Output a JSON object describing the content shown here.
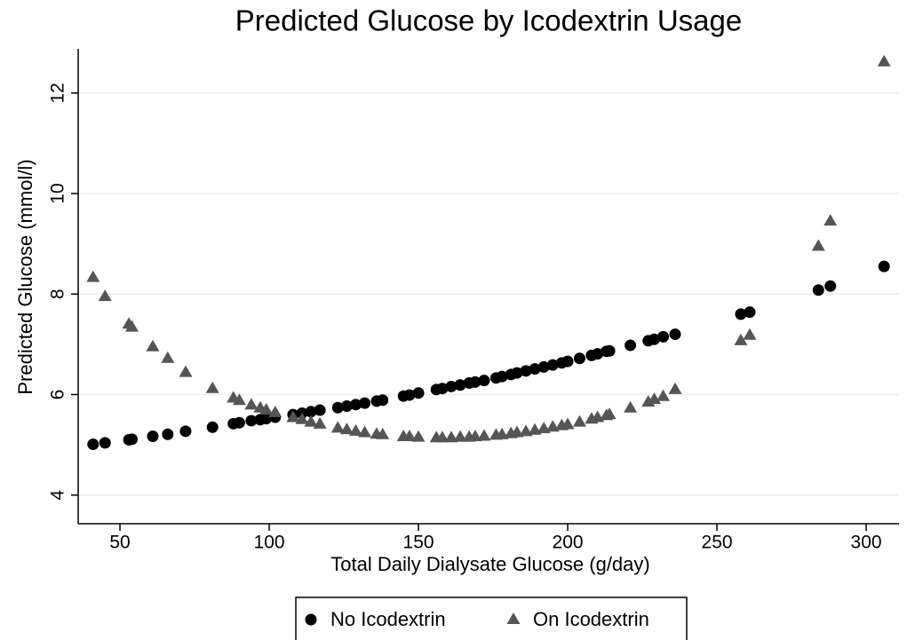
{
  "chart_data": {
    "type": "scatter",
    "title": "Predicted Glucose by Icodextrin Usage",
    "xlabel": "Total Daily Dialysate Glucose (g/day)",
    "ylabel": "Predicted Glucose (mmol/l)",
    "x": [
      41,
      45,
      53,
      54,
      61,
      66,
      72,
      81,
      88,
      90,
      94,
      97,
      99,
      102,
      108,
      111,
      114,
      117,
      123,
      126,
      129,
      132,
      136,
      138,
      145,
      147,
      150,
      156,
      158,
      161,
      164,
      167,
      169,
      172,
      176,
      178,
      181,
      183,
      186,
      189,
      192,
      195,
      198,
      200,
      204,
      208,
      210,
      213,
      214,
      221,
      227,
      229,
      232,
      236,
      258,
      261,
      284,
      288,
      306
    ],
    "series": [
      {
        "name": "No Icodextrin",
        "color": "#000000",
        "marker": "circle",
        "values": [
          5.01,
          5.04,
          5.1,
          5.11,
          5.17,
          5.21,
          5.27,
          5.35,
          5.42,
          5.44,
          5.48,
          5.5,
          5.52,
          5.55,
          5.6,
          5.63,
          5.66,
          5.69,
          5.74,
          5.77,
          5.8,
          5.83,
          5.87,
          5.89,
          5.97,
          5.99,
          6.03,
          6.1,
          6.12,
          6.16,
          6.19,
          6.23,
          6.25,
          6.28,
          6.33,
          6.36,
          6.4,
          6.43,
          6.47,
          6.51,
          6.55,
          6.59,
          6.63,
          6.66,
          6.72,
          6.78,
          6.81,
          6.86,
          6.87,
          6.98,
          7.07,
          7.1,
          7.15,
          7.2,
          7.6,
          7.64,
          8.08,
          8.16,
          8.55
        ]
      },
      {
        "name": "On Icodextrin",
        "color": "#555555",
        "marker": "triangle",
        "values": [
          8.33,
          7.95,
          7.4,
          7.34,
          6.95,
          6.72,
          6.44,
          6.12,
          5.93,
          5.88,
          5.79,
          5.73,
          5.69,
          5.64,
          5.54,
          5.5,
          5.45,
          5.41,
          5.33,
          5.3,
          5.27,
          5.24,
          5.21,
          5.2,
          5.16,
          5.16,
          5.15,
          5.14,
          5.14,
          5.14,
          5.15,
          5.15,
          5.16,
          5.17,
          5.19,
          5.2,
          5.22,
          5.24,
          5.26,
          5.29,
          5.32,
          5.35,
          5.38,
          5.4,
          5.45,
          5.51,
          5.54,
          5.58,
          5.6,
          5.73,
          5.85,
          5.9,
          5.96,
          6.1,
          7.07,
          7.18,
          8.95,
          9.45,
          12.62
        ]
      }
    ],
    "xlim": [
      36,
      311
    ],
    "ylim": [
      3.43,
      12.88
    ],
    "xticks": [
      50,
      100,
      150,
      200,
      250,
      300
    ],
    "yticks": [
      4,
      6,
      8,
      10,
      12
    ],
    "grid": true,
    "legend": "bottom"
  }
}
